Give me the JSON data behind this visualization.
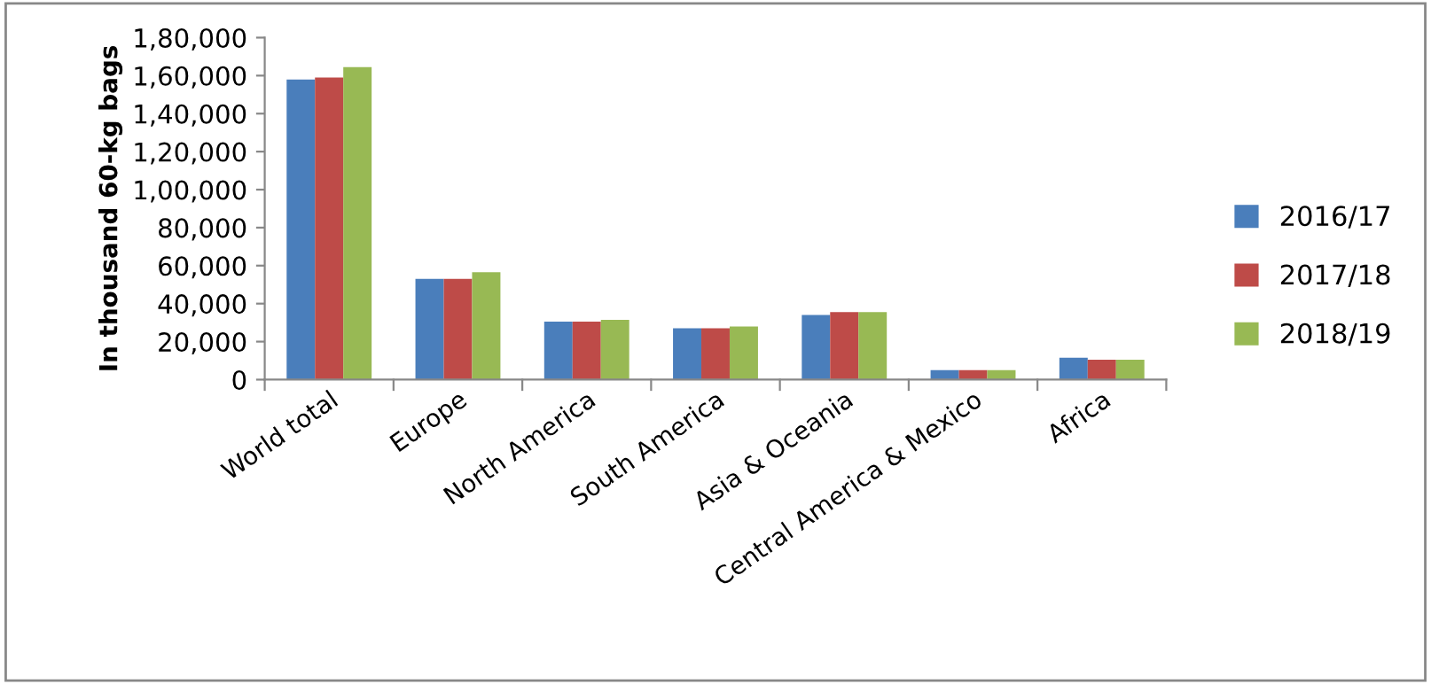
{
  "chart_data": {
    "type": "bar",
    "ylabel": "In thousand 60-kg bags",
    "categories": [
      "World total",
      "Europe",
      "North America",
      "South America",
      "Asia & Oceania",
      "Central America & Mexico",
      "Africa"
    ],
    "series": [
      {
        "name": "2016/17",
        "color": "#4a7ebb",
        "values": [
          158000,
          53000,
          30500,
          27000,
          34000,
          5000,
          11500
        ]
      },
      {
        "name": "2017/18",
        "color": "#be4b48",
        "values": [
          159000,
          53000,
          30500,
          27000,
          35500,
          5000,
          10500
        ]
      },
      {
        "name": "2018/19",
        "color": "#98b954",
        "values": [
          164500,
          56500,
          31500,
          28000,
          35500,
          5000,
          10500
        ]
      }
    ],
    "ylim": [
      0,
      180000
    ],
    "yticks": [
      0,
      {
        "value": 20000,
        "label": "20,000"
      },
      {
        "value": 40000,
        "label": "40,000"
      },
      {
        "value": 60000,
        "label": "60,000"
      },
      {
        "value": 80000,
        "label": "80,000"
      },
      {
        "value": 100000,
        "label": "1,00,000"
      },
      {
        "value": 120000,
        "label": "1,20,000"
      },
      {
        "value": 140000,
        "label": "1,40,000"
      },
      {
        "value": 160000,
        "label": "1,60,000"
      },
      {
        "value": 180000,
        "label": "1,80,000"
      }
    ],
    "grid": false,
    "legend": "right"
  }
}
